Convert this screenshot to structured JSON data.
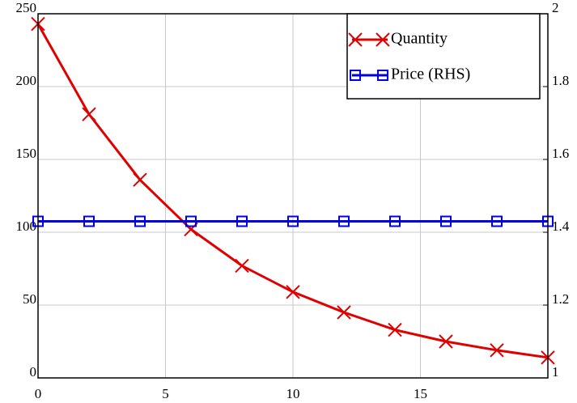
{
  "chart_data": {
    "type": "line",
    "x": [
      0,
      2,
      4,
      6,
      8,
      10,
      12,
      14,
      16,
      18,
      20
    ],
    "series": [
      {
        "name": "Quantity",
        "color": "#e00000",
        "marker": "x",
        "values": [
          243,
          181,
          136,
          102,
          77,
          59,
          45,
          33,
          25,
          19,
          14
        ]
      },
      {
        "name": "Price (RHS)",
        "color": "#0000e0",
        "marker": "square",
        "axis": "y2",
        "values": [
          1.43,
          1.43,
          1.43,
          1.43,
          1.43,
          1.43,
          1.43,
          1.43,
          1.43,
          1.43,
          1.43
        ]
      }
    ],
    "xlim": [
      0,
      20
    ],
    "xticks": [
      0,
      5,
      10,
      15
    ],
    "ylim": [
      0,
      250
    ],
    "yticks": [
      0,
      50,
      100,
      150,
      200,
      250
    ],
    "y2lim": [
      1,
      2
    ],
    "y2ticks": [
      1,
      1.2,
      1.4,
      1.6,
      1.8,
      2
    ],
    "grid": true,
    "legend": "upper right"
  }
}
